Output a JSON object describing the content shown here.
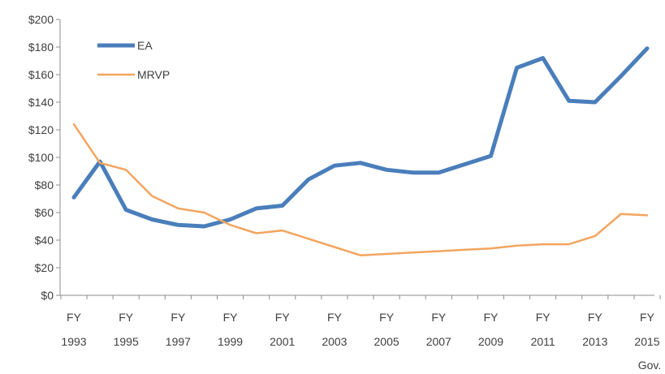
{
  "chart_data": {
    "type": "line",
    "title": "",
    "xlabel": "",
    "ylabel": "",
    "x": [
      1993,
      1994,
      1995,
      1996,
      1997,
      1998,
      1999,
      2000,
      2001,
      2002,
      2003,
      2004,
      2005,
      2006,
      2007,
      2008,
      2009,
      2010,
      2011,
      2012,
      2013,
      2014,
      2015
    ],
    "x_tick_labels": [
      {
        "line1": "FY",
        "line2": "1993",
        "x": 1993
      },
      {
        "line1": "FY",
        "line2": "1995",
        "x": 1995
      },
      {
        "line1": "FY",
        "line2": "1997",
        "x": 1997
      },
      {
        "line1": "FY",
        "line2": "1999",
        "x": 1999
      },
      {
        "line1": "FY",
        "line2": "2001",
        "x": 2001
      },
      {
        "line1": "FY",
        "line2": "2003",
        "x": 2003
      },
      {
        "line1": "FY",
        "line2": "2005",
        "x": 2005
      },
      {
        "line1": "FY",
        "line2": "2007",
        "x": 2007
      },
      {
        "line1": "FY",
        "line2": "2009",
        "x": 2009
      },
      {
        "line1": "FY",
        "line2": "2011",
        "x": 2011
      },
      {
        "line1": "FY",
        "line2": "2013",
        "x": 2013
      },
      {
        "line1": "FY",
        "line2": "2015",
        "x": 2015
      }
    ],
    "x_extra_label": "Gov.",
    "ylim": [
      0,
      200
    ],
    "y_ticks": [
      0,
      20,
      40,
      60,
      80,
      100,
      120,
      140,
      160,
      180,
      200
    ],
    "y_tick_prefix": "$",
    "grid": false,
    "legend_position": "top-left",
    "series": [
      {
        "name": "EA",
        "color": "#4a7ebb",
        "values": [
          71,
          97,
          62,
          55,
          51,
          50,
          55,
          63,
          65,
          84,
          94,
          96,
          91,
          89,
          89,
          95,
          101,
          165,
          172,
          141,
          140,
          159,
          179
        ]
      },
      {
        "name": "MRVP",
        "color": "#f2a55f",
        "values": [
          124,
          96,
          91,
          72,
          63,
          60,
          51,
          45,
          47,
          41,
          35,
          29,
          30,
          31,
          32,
          33,
          34,
          36,
          37,
          37,
          43,
          59,
          58
        ]
      }
    ]
  }
}
